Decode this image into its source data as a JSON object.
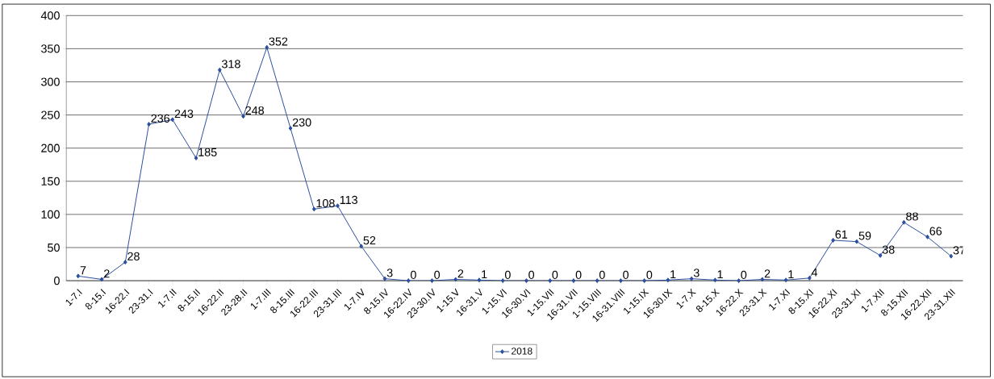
{
  "chart_data": {
    "type": "line",
    "categories": [
      "1-7.I",
      "8-15.I",
      "16-22.I",
      "23-31.I",
      "1-7.II",
      "8-15.II",
      "16-22.II",
      "23-28.II",
      "1-7.III",
      "8-15.III",
      "16-22.III",
      "23-31.III",
      "1-7.IV",
      "8-15.IV",
      "16-22.IV",
      "23-30.IV",
      "1-15.V",
      "16-31.V",
      "1-15.VI",
      "16-30.VI",
      "1-15.VII",
      "16-31.VII",
      "1-15.VIII",
      "16-31.VIII",
      "1-15.IX",
      "16-30.IX",
      "1-7.X",
      "8-15.X",
      "16-22.X",
      "23-31.X",
      "1-7.XI",
      "8-15.XI",
      "16-22.XI",
      "23-31.XI",
      "1-7.XII",
      "8-15.XII",
      "16-22.XII",
      "23-31.XII"
    ],
    "series": [
      {
        "name": "2018",
        "color": "#2a4fa0",
        "values": [
          7,
          2,
          28,
          236,
          243,
          185,
          318,
          248,
          352,
          230,
          108,
          113,
          52,
          3,
          0,
          0,
          2,
          1,
          0,
          0,
          0,
          0,
          0,
          0,
          0,
          1,
          3,
          1,
          0,
          2,
          1,
          4,
          61,
          59,
          38,
          88,
          66,
          37
        ]
      }
    ],
    "ylim": [
      0,
      400
    ],
    "yticks": [
      0,
      50,
      100,
      150,
      200,
      250,
      300,
      350,
      400
    ],
    "grid": "y",
    "legend": "bottom",
    "marker": "diamond",
    "line_style": "solid",
    "data_labels": true
  }
}
